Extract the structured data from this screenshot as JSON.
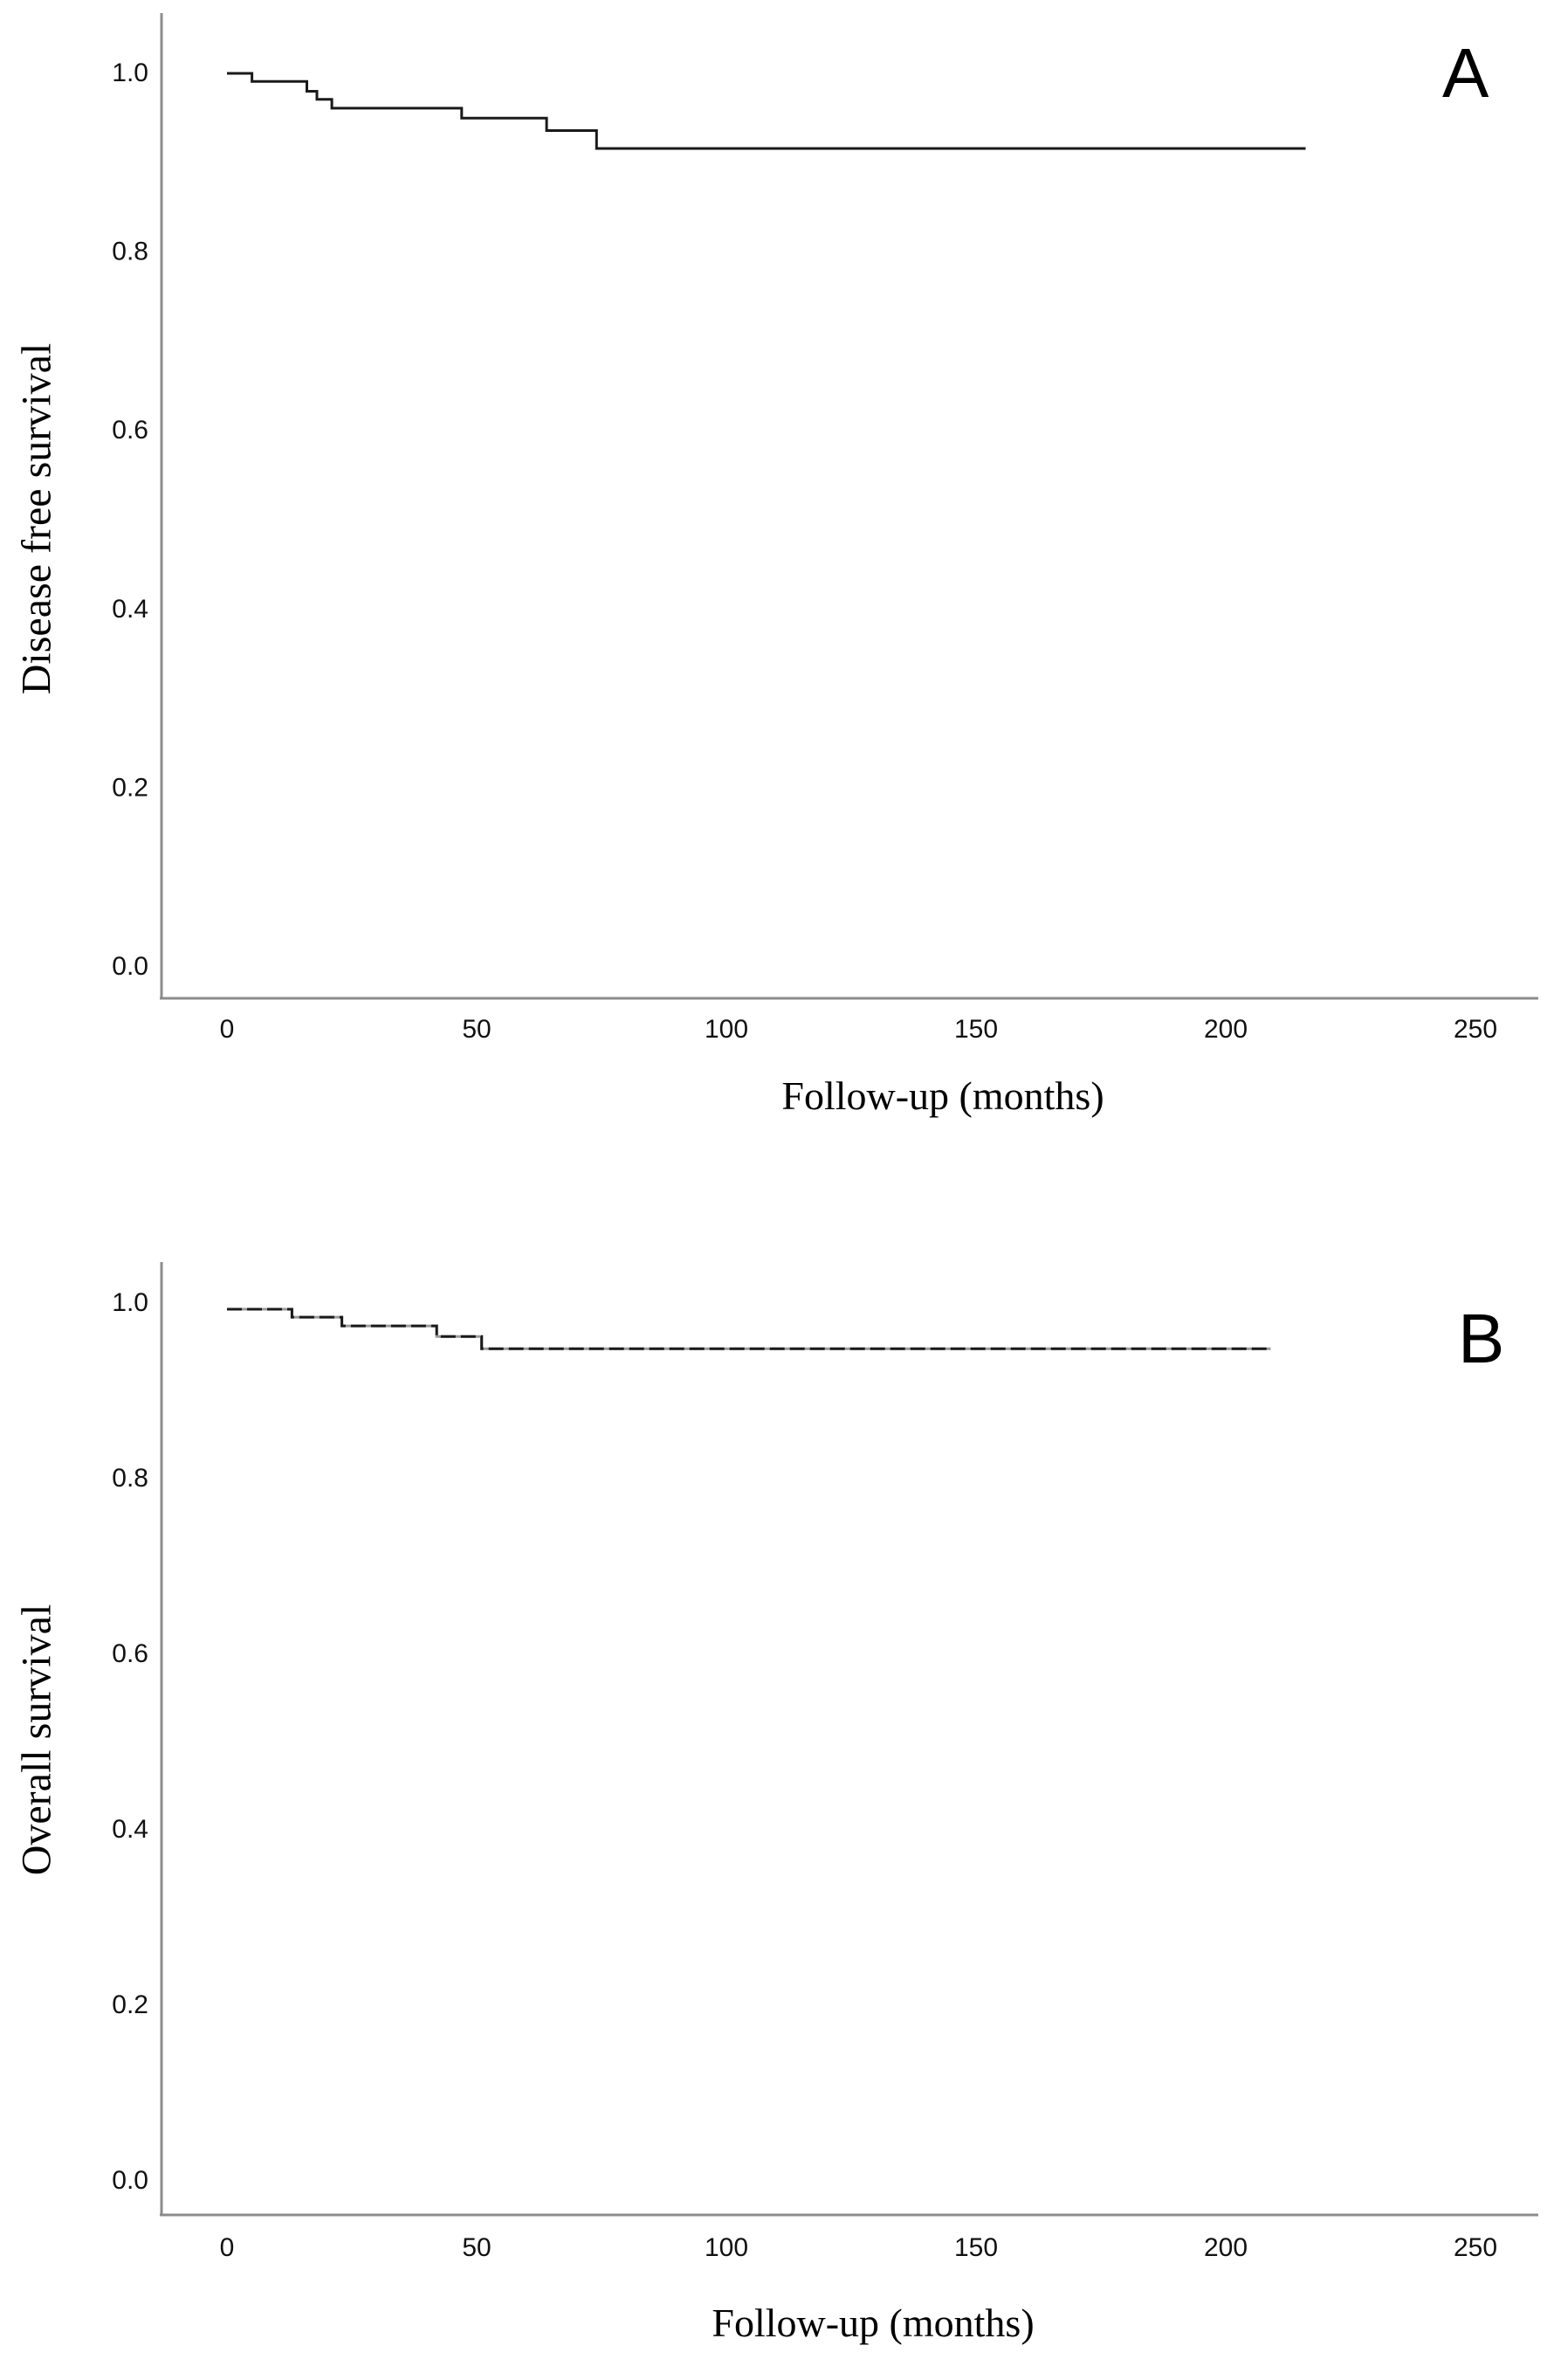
{
  "colors": {
    "background": "#ffffff",
    "curve": "#1a1a1a",
    "curve_underlay": "#9a9a9a",
    "axis": "#8c8c8c",
    "tick_text": "#111111"
  },
  "panels": [
    {
      "label": "A",
      "y_title": "Disease free survival",
      "x_title": "Follow-up (months)",
      "y_tick_labels": [
        "1.0",
        "0.8",
        "0.6",
        "0.4",
        "0.2",
        "0.0"
      ],
      "x_tick_labels": [
        "0",
        "50",
        "100",
        "150",
        "200",
        "250"
      ]
    },
    {
      "label": "B",
      "y_title": "Overall survival",
      "x_title": "Follow-up (months)",
      "y_tick_labels": [
        "1.0",
        "0.8",
        "0.6",
        "0.4",
        "0.2",
        "0.0"
      ],
      "x_tick_labels": [
        "0",
        "50",
        "100",
        "150",
        "200",
        "250"
      ]
    }
  ],
  "chart_data": [
    {
      "type": "line",
      "subtype": "kaplan-meier-step",
      "panel_label": "A",
      "ylabel": "Disease free survival",
      "xlabel": "Follow-up (months)",
      "xlim": [
        0,
        250
      ],
      "ylim": [
        0.0,
        1.0
      ],
      "x_ticks": [
        0,
        50,
        100,
        150,
        200,
        250
      ],
      "y_ticks": [
        1.0,
        0.8,
        0.6,
        0.4,
        0.2,
        0.0
      ],
      "grid": false,
      "legend": "none",
      "steps": [
        [
          0,
          0.998
        ],
        [
          5,
          0.989
        ],
        [
          16,
          0.978
        ],
        [
          18,
          0.969
        ],
        [
          21,
          0.959
        ],
        [
          47,
          0.948
        ],
        [
          64,
          0.934
        ],
        [
          74,
          0.914
        ]
      ],
      "end_month": 216,
      "final_value": 0.914
    },
    {
      "type": "line",
      "subtype": "kaplan-meier-step",
      "panel_label": "B",
      "ylabel": "Overall survival",
      "xlabel": "Follow-up (months)",
      "xlim": [
        0,
        250
      ],
      "ylim": [
        0.0,
        1.0
      ],
      "x_ticks": [
        0,
        50,
        100,
        150,
        200,
        250
      ],
      "y_ticks": [
        1.0,
        0.8,
        0.6,
        0.4,
        0.2,
        0.0
      ],
      "grid": false,
      "legend": "none",
      "steps": [
        [
          0,
          0.991
        ],
        [
          13,
          0.982
        ],
        [
          23,
          0.972
        ],
        [
          42,
          0.96
        ],
        [
          51,
          0.946
        ]
      ],
      "end_month": 209,
      "final_value": 0.946
    }
  ]
}
